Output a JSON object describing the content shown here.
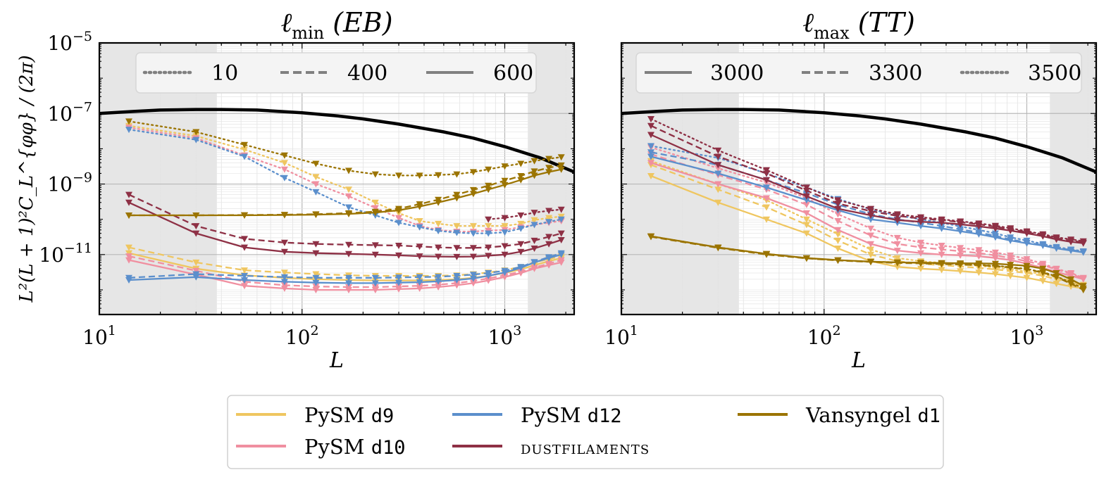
{
  "colors": {
    "d9": "#efc660",
    "d10": "#f08fa0",
    "d12": "#5b8fcc",
    "dustfilaments": "#8e3045",
    "vansyngel": "#9b7400",
    "signal": "#000000",
    "grey_legend": "#808080",
    "shade": "#e6e6e6"
  },
  "legend": {
    "items": [
      {
        "key": "d9",
        "prefix": "PySM ",
        "code": "d9",
        "label": ""
      },
      {
        "key": "d10",
        "prefix": "PySM ",
        "code": "d10",
        "label": ""
      },
      {
        "key": "d12",
        "prefix": "PySM ",
        "code": "d12",
        "label": ""
      },
      {
        "key": "dustfilaments",
        "prefix": "",
        "code": "",
        "label": "dustfilaments"
      },
      {
        "key": "vansyngel",
        "prefix": "Vansyngel ",
        "code": "d1",
        "label": ""
      }
    ]
  },
  "chart_data": [
    {
      "type": "line",
      "title": "ℓmin (EB)",
      "title_main": "ℓ",
      "title_sub": "min",
      "title_rest": " (EB)",
      "xlabel": "L",
      "ylabel": "L²(L + 1)²C_L^{φφ} / (2π)",
      "xscale": "log",
      "yscale": "log",
      "xlim": [
        10,
        2200
      ],
      "ylim": [
        2e-13,
        1e-05
      ],
      "x_ticks": [
        "10^1",
        "10^2",
        "10^3"
      ],
      "y_ticks": [
        "10^-5",
        "10^-7",
        "10^-9",
        "10^-11"
      ],
      "shaded_regions": [
        [
          10,
          38
        ],
        [
          1300,
          2200
        ]
      ],
      "style_legend": [
        {
          "style": "dotted",
          "label": "10"
        },
        {
          "style": "dashed",
          "label": "400"
        },
        {
          "style": "solid",
          "label": "600"
        }
      ],
      "signal_curve": {
        "x": [
          10,
          15,
          20,
          30,
          40,
          60,
          100,
          150,
          200,
          300,
          500,
          700,
          1000,
          1500,
          2200
        ],
        "y": [
          1e-07,
          1.15e-07,
          1.25e-07,
          1.3e-07,
          1.3e-07,
          1.25e-07,
          1.05e-07,
          8.5e-08,
          7e-08,
          5e-08,
          3e-08,
          2e-08,
          1.15e-08,
          5.5e-09,
          2.2e-09
        ]
      },
      "x": [
        14,
        30,
        52,
        82,
        117,
        170,
        230,
        300,
        380,
        470,
        580,
        700,
        830,
        1000,
        1200,
        1400,
        1650,
        1900
      ],
      "series": [
        {
          "name": "PySM d9",
          "color_key": "d9",
          "style": "dotted",
          "values": [
            4.5e-08,
            2.3e-08,
            9.5e-09,
            4e-09,
            1.6e-09,
            7e-10,
            3e-10,
            1.5e-10,
            9e-11,
            7.5e-11,
            6.5e-11,
            6.5e-11,
            6.5e-11,
            6.5e-11,
            7.5e-11,
            9.5e-11,
            1.1e-10,
            1.2e-10
          ]
        },
        {
          "name": "PySM d9",
          "color_key": "d9",
          "style": "dashed",
          "values": [
            1.6e-11,
            6e-12,
            3.6e-12,
            3.1e-12,
            2.8e-12,
            2.6e-12,
            2.5e-12,
            2.5e-12,
            2.5e-12,
            2.5e-12,
            2.6e-12,
            2.8e-12,
            3.1e-12,
            3.6e-12,
            4.5e-12,
            6e-12,
            7.5e-12,
            9e-12
          ]
        },
        {
          "name": "PySM d9",
          "color_key": "d9",
          "style": "solid",
          "values": [
            1.1e-11,
            4e-12,
            2.6e-12,
            2.2e-12,
            2e-12,
            1.9e-12,
            1.85e-12,
            1.85e-12,
            1.85e-12,
            1.9e-12,
            2e-12,
            2.2e-12,
            2.5e-12,
            3e-12,
            3.8e-12,
            5e-12,
            6.5e-12,
            8e-12
          ]
        },
        {
          "name": "PySM d10",
          "color_key": "d10",
          "style": "dotted",
          "values": [
            4e-08,
            2e-08,
            6.5e-09,
            2.6e-09,
            1e-09,
            4.5e-10,
            2.1e-10,
            1.1e-10,
            6.5e-11,
            5e-11,
            4.5e-11,
            4.5e-11,
            4.8e-11,
            5e-11,
            6e-11,
            7e-11,
            8e-11,
            9e-11
          ]
        },
        {
          "name": "PySM d10",
          "color_key": "d10",
          "style": "dashed",
          "values": [
            9e-12,
            3.5e-12,
            1.7e-12,
            1.35e-12,
            1.25e-12,
            1.2e-12,
            1.2e-12,
            1.25e-12,
            1.3e-12,
            1.4e-12,
            1.55e-12,
            1.8e-12,
            2.1e-12,
            2.6e-12,
            3.3e-12,
            4.3e-12,
            5.5e-12,
            7e-12
          ]
        },
        {
          "name": "PySM d10",
          "color_key": "d10",
          "style": "solid",
          "values": [
            7e-12,
            2.7e-12,
            1.3e-12,
            1.1e-12,
            1e-12,
            1e-12,
            1e-12,
            1.05e-12,
            1.1e-12,
            1.2e-12,
            1.35e-12,
            1.55e-12,
            1.85e-12,
            2.3e-12,
            3e-12,
            4e-12,
            5e-12,
            6e-12
          ]
        },
        {
          "name": "PySM d12",
          "color_key": "d12",
          "style": "dotted",
          "values": [
            3.5e-08,
            1.8e-08,
            6e-09,
            1.5e-09,
            6e-10,
            2.2e-10,
            1.3e-10,
            8e-11,
            6e-11,
            4.7e-11,
            4.2e-11,
            4e-11,
            4e-11,
            4.3e-11,
            5.5e-11,
            7e-11,
            8.5e-11,
            1e-10
          ]
        },
        {
          "name": "PySM d12",
          "color_key": "d12",
          "style": "dashed",
          "values": [
            2.2e-12,
            2.8e-12,
            2.5e-12,
            2.3e-12,
            2.2e-12,
            2.2e-12,
            2.2e-12,
            2.25e-12,
            2.3e-12,
            2.35e-12,
            2.5e-12,
            2.7e-12,
            3e-12,
            3.5e-12,
            4.5e-12,
            6.2e-12,
            8.5e-12,
            1.1e-11
          ]
        },
        {
          "name": "PySM d12",
          "color_key": "d12",
          "style": "solid",
          "values": [
            1.9e-12,
            2.3e-12,
            1.9e-12,
            1.7e-12,
            1.6e-12,
            1.55e-12,
            1.55e-12,
            1.6e-12,
            1.65e-12,
            1.75e-12,
            1.9e-12,
            2.1e-12,
            2.5e-12,
            3.1e-12,
            4.2e-12,
            6e-12,
            8e-12,
            1e-11
          ]
        },
        {
          "name": "dustfilaments",
          "color_key": "dustfilaments",
          "style": "dotted",
          "values": [
            null,
            null,
            null,
            null,
            null,
            null,
            null,
            null,
            null,
            null,
            null,
            null,
            1e-10,
            1.1e-10,
            1.3e-10,
            1.55e-10,
            1.75e-10,
            1.9e-10
          ]
        },
        {
          "name": "dustfilaments",
          "color_key": "dustfilaments",
          "style": "dashed",
          "values": [
            5e-10,
            6.5e-11,
            2.8e-11,
            2.2e-11,
            2e-11,
            1.9e-11,
            1.85e-11,
            1.8e-11,
            1.7e-11,
            1.6e-11,
            1.55e-11,
            1.55e-11,
            1.6e-11,
            1.75e-11,
            2e-11,
            2.5e-11,
            3.2e-11,
            4e-11
          ]
        },
        {
          "name": "dustfilaments",
          "color_key": "dustfilaments",
          "style": "solid",
          "values": [
            3e-10,
            4e-11,
            1.6e-11,
            1.2e-11,
            1.1e-11,
            1.05e-11,
            1e-11,
            9.5e-12,
            9e-12,
            8.8e-12,
            8.7e-12,
            8.8e-12,
            9.3e-12,
            1e-11,
            1.2e-11,
            1.5e-11,
            2e-11,
            2.6e-11
          ]
        },
        {
          "name": "Vansyngel d1",
          "color_key": "vansyngel",
          "style": "dotted",
          "values": [
            6e-08,
            3e-08,
            1.3e-08,
            6.5e-09,
            3.8e-09,
            2.4e-09,
            1.9e-09,
            1.75e-09,
            1.75e-09,
            1.8e-09,
            1.9e-09,
            2.2e-09,
            2.6e-09,
            3.2e-09,
            3.8e-09,
            4.5e-09,
            5.2e-09,
            5.8e-09
          ]
        },
        {
          "name": "Vansyngel d1",
          "color_key": "vansyngel",
          "style": "dashed",
          "values": [
            1.3e-10,
            1.3e-10,
            1.32e-10,
            1.35e-10,
            1.4e-10,
            1.5e-10,
            1.65e-10,
            2e-10,
            2.7e-10,
            3.6e-10,
            5e-10,
            6.8e-10,
            9e-10,
            1.25e-09,
            1.7e-09,
            2.3e-09,
            2.9e-09,
            3.4e-09
          ]
        },
        {
          "name": "Vansyngel d1",
          "color_key": "vansyngel",
          "style": "solid",
          "values": [
            1.3e-10,
            1.3e-10,
            1.3e-10,
            1.32e-10,
            1.35e-10,
            1.42e-10,
            1.55e-10,
            1.8e-10,
            2.3e-10,
            3e-10,
            4e-10,
            5.3e-10,
            7e-10,
            9.5e-10,
            1.3e-09,
            1.75e-09,
            2.2e-09,
            2.6e-09
          ]
        }
      ]
    },
    {
      "type": "line",
      "title": "ℓmax (TT)",
      "title_main": "ℓ",
      "title_sub": "max",
      "title_rest": " (TT)",
      "xlabel": "L",
      "ylabel": "",
      "xscale": "log",
      "yscale": "log",
      "xlim": [
        10,
        2200
      ],
      "ylim": [
        2e-13,
        1e-05
      ],
      "x_ticks": [
        "10^1",
        "10^2",
        "10^3"
      ],
      "y_ticks": [],
      "shaded_regions": [
        [
          10,
          38
        ],
        [
          1300,
          2200
        ]
      ],
      "style_legend": [
        {
          "style": "solid",
          "label": "3000"
        },
        {
          "style": "dashed",
          "label": "3300"
        },
        {
          "style": "dotted",
          "label": "3500"
        }
      ],
      "signal_curve": {
        "x": [
          10,
          15,
          20,
          30,
          40,
          60,
          100,
          150,
          200,
          300,
          500,
          700,
          1000,
          1500,
          2200
        ],
        "y": [
          1e-07,
          1.15e-07,
          1.25e-07,
          1.3e-07,
          1.3e-07,
          1.25e-07,
          1.05e-07,
          8.5e-08,
          7e-08,
          5e-08,
          3e-08,
          2e-08,
          1.15e-08,
          5.5e-09,
          2.2e-09
        ]
      },
      "x": [
        14,
        30,
        52,
        82,
        117,
        170,
        230,
        300,
        380,
        470,
        580,
        700,
        830,
        1000,
        1200,
        1400,
        1650,
        1900
      ],
      "series": [
        {
          "name": "PySM d9",
          "color_key": "d9",
          "style": "solid",
          "values": [
            1.7e-09,
            3e-10,
            1e-10,
            4e-11,
            1.5e-11,
            6.5e-12,
            4.5e-12,
            4e-12,
            3.7e-12,
            3.4e-12,
            3.1e-12,
            2.8e-12,
            2.5e-12,
            2.2e-12,
            1.8e-12,
            1.5e-12,
            1.25e-12,
            1.1e-12
          ]
        },
        {
          "name": "PySM d9",
          "color_key": "d9",
          "style": "dashed",
          "values": [
            3.5e-09,
            7e-10,
            2.2e-10,
            7e-11,
            2.5e-11,
            1e-11,
            6.5e-12,
            5.5e-12,
            5e-12,
            4.6e-12,
            4.2e-12,
            3.8e-12,
            3.4e-12,
            3e-12,
            2.5e-12,
            2e-12,
            1.6e-12,
            1.3e-12
          ]
        },
        {
          "name": "PySM d9",
          "color_key": "d9",
          "style": "dotted",
          "values": [
            4.5e-09,
            1e-09,
            3.5e-10,
            1e-10,
            3.8e-11,
            1.4e-11,
            8e-12,
            6.5e-12,
            5.8e-12,
            5.3e-12,
            4.8e-12,
            4.3e-12,
            3.8e-12,
            3.3e-12,
            2.8e-12,
            2.3e-12,
            1.8e-12,
            1.4e-12
          ]
        },
        {
          "name": "PySM d10",
          "color_key": "d10",
          "style": "solid",
          "values": [
            4e-09,
            1e-09,
            4e-10,
            1.5e-10,
            5e-11,
            2e-11,
            1.3e-11,
            1.1e-11,
            1e-11,
            9.5e-12,
            9e-12,
            8e-12,
            7e-12,
            5.5e-12,
            4.2e-12,
            3.2e-12,
            2.5e-12,
            2e-12
          ]
        },
        {
          "name": "PySM d10",
          "color_key": "d10",
          "style": "dashed",
          "values": [
            7e-09,
            1.8e-09,
            7e-10,
            2.6e-10,
            9e-11,
            3.5e-11,
            2e-11,
            1.6e-11,
            1.4e-11,
            1.25e-11,
            1.1e-11,
            9.5e-12,
            8e-12,
            6.5e-12,
            5e-12,
            3.8e-12,
            2.8e-12,
            2.1e-12
          ]
        },
        {
          "name": "PySM d10",
          "color_key": "d10",
          "style": "dotted",
          "values": [
            1.1e-08,
            2.8e-09,
            1.1e-09,
            4e-10,
            1.4e-10,
            5.5e-11,
            3e-11,
            2.2e-11,
            1.8e-11,
            1.55e-11,
            1.35e-11,
            1.15e-11,
            9.5e-12,
            7.5e-12,
            5.5e-12,
            4e-12,
            3e-12,
            2.2e-12
          ]
        },
        {
          "name": "PySM d12",
          "color_key": "d12",
          "style": "solid",
          "values": [
            6e-09,
            2e-09,
            8e-10,
            3.5e-10,
            1.8e-10,
            1e-10,
            8e-11,
            6.5e-11,
            5.5e-11,
            4.6e-11,
            3.8e-11,
            3.1e-11,
            2.5e-11,
            2.1e-11,
            1.8e-11,
            1.5e-11,
            1.3e-11,
            1.15e-11
          ]
        },
        {
          "name": "PySM d12",
          "color_key": "d12",
          "style": "dashed",
          "values": [
            8e-09,
            3.5e-09,
            1.3e-09,
            5.5e-10,
            2.6e-10,
            1.4e-10,
            1e-10,
            8e-11,
            6.5e-11,
            5.2e-11,
            4.2e-11,
            3.4e-11,
            2.7e-11,
            2.2e-11,
            1.85e-11,
            1.55e-11,
            1.35e-11,
            1.2e-11
          ]
        },
        {
          "name": "PySM d12",
          "color_key": "d12",
          "style": "dotted",
          "values": [
            1.2e-08,
            5.5e-09,
            2e-09,
            8e-10,
            3.8e-10,
            1.9e-10,
            1.3e-10,
            1e-10,
            8e-11,
            6.3e-11,
            5e-11,
            4e-11,
            3.1e-11,
            2.5e-11,
            2e-11,
            1.65e-11,
            1.4e-11,
            1.25e-11
          ]
        },
        {
          "name": "dustfilaments",
          "color_key": "dustfilaments",
          "style": "solid",
          "values": [
            2.5e-08,
            3.5e-09,
            1.3e-09,
            4.5e-10,
            2e-10,
            1.3e-10,
            9.5e-11,
            8.5e-11,
            8e-11,
            7.2e-11,
            6.3e-11,
            5.5e-11,
            4.8e-11,
            4e-11,
            3.3e-11,
            2.7e-11,
            2.3e-11,
            2.1e-11
          ]
        },
        {
          "name": "dustfilaments",
          "color_key": "dustfilaments",
          "style": "dashed",
          "values": [
            4.5e-08,
            6e-09,
            2e-09,
            6.5e-10,
            2.8e-10,
            1.7e-10,
            1.25e-10,
            1.05e-10,
            9.5e-11,
            8.3e-11,
            7.2e-11,
            6.2e-11,
            5.2e-11,
            4.3e-11,
            3.5e-11,
            2.9e-11,
            2.5e-11,
            2.2e-11
          ]
        },
        {
          "name": "dustfilaments",
          "color_key": "dustfilaments",
          "style": "dotted",
          "values": [
            7e-08,
            9e-09,
            2.5e-09,
            8e-10,
            3.5e-10,
            2e-10,
            1.4e-10,
            1.15e-10,
            1e-10,
            8.8e-11,
            7.7e-11,
            6.6e-11,
            5.6e-11,
            4.6e-11,
            3.8e-11,
            3.1e-11,
            2.7e-11,
            2.4e-11
          ]
        },
        {
          "name": "Vansyngel d1",
          "color_key": "vansyngel",
          "style": "solid",
          "values": [
            3.3e-11,
            1.6e-11,
            1.05e-11,
            8e-12,
            7e-12,
            6.3e-12,
            6e-12,
            5.9e-12,
            5.8e-12,
            5.7e-12,
            5.6e-12,
            5.5e-12,
            5.2e-12,
            4.8e-12,
            4e-12,
            3e-12,
            2e-12,
            1.3e-12
          ]
        },
        {
          "name": "Vansyngel d1",
          "color_key": "vansyngel",
          "style": "dashed",
          "values": [
            3.2e-11,
            1.55e-11,
            1e-11,
            7.8e-12,
            6.8e-12,
            6.2e-12,
            5.8e-12,
            5.6e-12,
            5.4e-12,
            5.2e-12,
            5e-12,
            4.7e-12,
            4.3e-12,
            3.8e-12,
            3.1e-12,
            2.3e-12,
            1.5e-12,
            1e-12
          ]
        },
        {
          "name": "Vansyngel d1",
          "color_key": "vansyngel",
          "style": "dotted",
          "values": [
            3.3e-11,
            1.6e-11,
            1.05e-11,
            7.9e-12,
            6.9e-12,
            6.3e-12,
            6e-12,
            5.8e-12,
            5.6e-12,
            5.4e-12,
            5.1e-12,
            4.8e-12,
            4.4e-12,
            3.9e-12,
            3.2e-12,
            2.4e-12,
            1.6e-12,
            1.1e-12
          ]
        }
      ]
    }
  ]
}
